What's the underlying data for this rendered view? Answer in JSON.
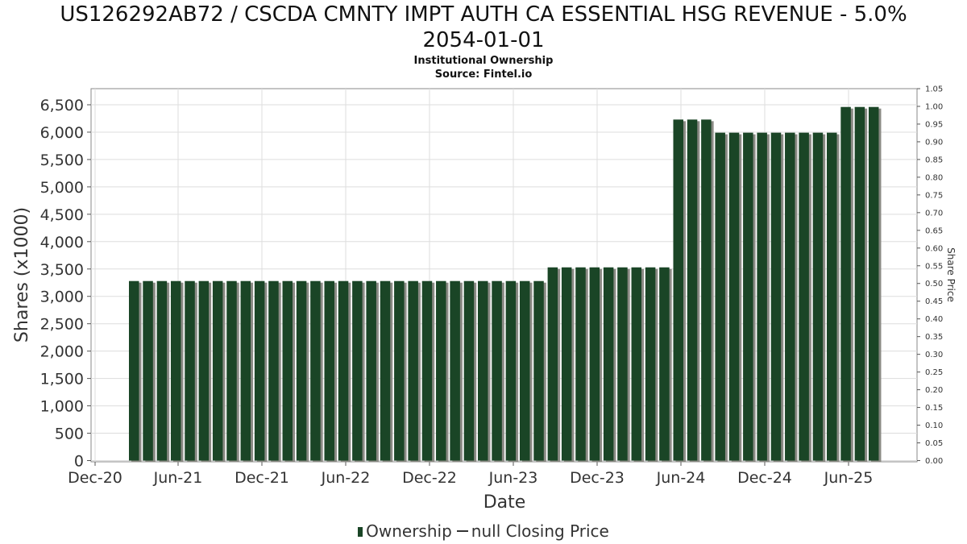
{
  "title_line1": "US126292AB72 / CSCDA CMNTY IMPT AUTH CA ESSENTIAL HSG REVENUE - 5.0%",
  "title_line2": "2054-01-01",
  "subtitle1": "Institutional Ownership",
  "subtitle2": "Source: Fintel.io",
  "legend": {
    "ownership": "Ownership",
    "price": "null Closing Price"
  },
  "colors": {
    "bar": "#1a4526",
    "bar_shadow": "#8a8a84",
    "grid": "#dddddd",
    "axis": "#888888"
  },
  "chart_data": {
    "type": "bar",
    "xlabel": "Date",
    "ylabel": "Shares (x1000)",
    "y2label": "Share Price",
    "ylim": [
      0,
      6800
    ],
    "y2lim": [
      0,
      1.05
    ],
    "yticks": [
      "0",
      "500",
      "1,000",
      "1,500",
      "2,000",
      "2,500",
      "3,000",
      "3,500",
      "4,000",
      "4,500",
      "5,000",
      "5,500",
      "6,000",
      "6,500"
    ],
    "y2ticks": [
      "0.00",
      "0.05",
      "0.10",
      "0.15",
      "0.20",
      "0.25",
      "0.30",
      "0.35",
      "0.40",
      "0.45",
      "0.50",
      "0.55",
      "0.60",
      "0.65",
      "0.70",
      "0.75",
      "0.80",
      "0.85",
      "0.90",
      "0.95",
      "1.00",
      "1.05"
    ],
    "xticks": [
      "Dec-20",
      "Jun-21",
      "Dec-21",
      "Jun-22",
      "Dec-22",
      "Jun-23",
      "Dec-23",
      "Jun-24",
      "Dec-24",
      "Jun-25"
    ],
    "grid": true,
    "legend_position": "bottom",
    "series": [
      {
        "name": "Ownership",
        "values": [
          3280,
          3280,
          3280,
          3280,
          3280,
          3280,
          3280,
          3280,
          3280,
          3280,
          3280,
          3280,
          3280,
          3280,
          3280,
          3280,
          3280,
          3280,
          3280,
          3280,
          3280,
          3280,
          3280,
          3280,
          3280,
          3280,
          3280,
          3280,
          3280,
          3280,
          3530,
          3530,
          3530,
          3530,
          3530,
          3530,
          3530,
          3530,
          3530,
          6230,
          6230,
          6230,
          5990,
          5990,
          5990,
          5990,
          5990,
          5990,
          5990,
          5990,
          5990,
          6460,
          6460,
          6460
        ]
      },
      {
        "name": "null Closing Price",
        "values": []
      }
    ]
  }
}
